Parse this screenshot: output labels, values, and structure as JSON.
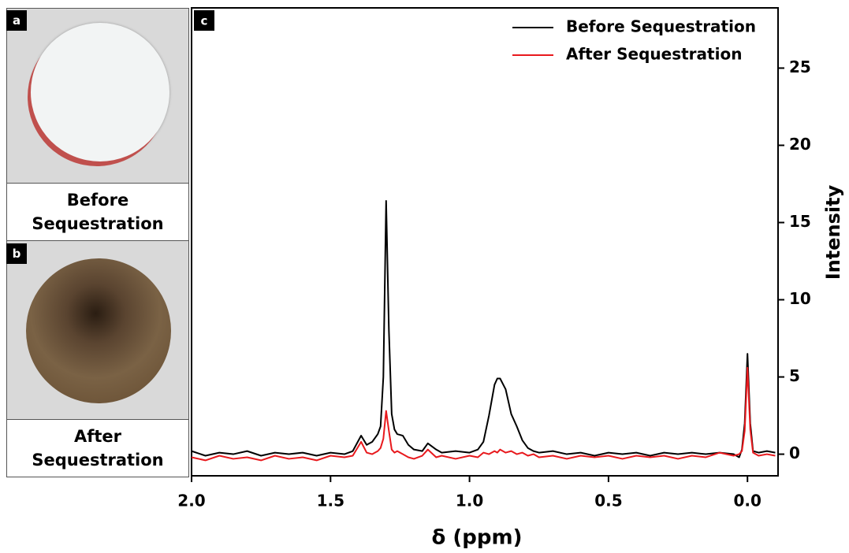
{
  "panels": [
    {
      "label": "a",
      "caption": "Before Sequestration"
    },
    {
      "label": "b",
      "caption": "After Sequestration"
    }
  ],
  "chart_data": {
    "type": "line",
    "panel_label": "c",
    "xlabel": "δ (ppm)",
    "ylabel": "Intensity",
    "x": [
      2.0,
      1.95,
      1.9,
      1.85,
      1.8,
      1.75,
      1.7,
      1.65,
      1.6,
      1.55,
      1.5,
      1.45,
      1.42,
      1.39,
      1.37,
      1.35,
      1.33,
      1.32,
      1.31,
      1.3,
      1.29,
      1.28,
      1.27,
      1.26,
      1.24,
      1.22,
      1.2,
      1.17,
      1.15,
      1.12,
      1.1,
      1.05,
      1.0,
      0.97,
      0.95,
      0.93,
      0.91,
      0.9,
      0.89,
      0.87,
      0.85,
      0.83,
      0.81,
      0.79,
      0.77,
      0.75,
      0.7,
      0.65,
      0.6,
      0.55,
      0.5,
      0.45,
      0.4,
      0.35,
      0.3,
      0.25,
      0.2,
      0.15,
      0.1,
      0.05,
      0.03,
      0.02,
      0.01,
      0.0,
      -0.01,
      -0.02,
      -0.04,
      -0.07,
      -0.1
    ],
    "series": [
      {
        "name": "Before Sequestration",
        "color": "#000000",
        "values": [
          0.2,
          -0.1,
          0.1,
          0.0,
          0.2,
          -0.1,
          0.1,
          0.0,
          0.1,
          -0.1,
          0.1,
          0.0,
          0.2,
          1.2,
          0.6,
          0.8,
          1.3,
          1.8,
          5.0,
          16.4,
          8.0,
          2.6,
          1.6,
          1.3,
          1.2,
          0.6,
          0.3,
          0.2,
          0.7,
          0.3,
          0.1,
          0.2,
          0.1,
          0.3,
          0.8,
          2.5,
          4.5,
          4.9,
          4.9,
          4.2,
          2.6,
          1.8,
          0.9,
          0.4,
          0.2,
          0.1,
          0.2,
          0.0,
          0.1,
          -0.1,
          0.1,
          0.0,
          0.1,
          -0.1,
          0.1,
          0.0,
          0.1,
          0.0,
          0.1,
          0.0,
          -0.2,
          0.3,
          2.0,
          6.5,
          2.0,
          0.2,
          0.1,
          0.2,
          0.1
        ]
      },
      {
        "name": "After Sequestration",
        "color": "#e8191d",
        "values": [
          -0.2,
          -0.4,
          -0.1,
          -0.3,
          -0.2,
          -0.4,
          -0.1,
          -0.3,
          -0.2,
          -0.4,
          -0.1,
          -0.2,
          -0.1,
          0.8,
          0.1,
          0.0,
          0.2,
          0.4,
          1.0,
          2.8,
          1.5,
          0.3,
          0.1,
          0.2,
          0.0,
          -0.2,
          -0.3,
          -0.1,
          0.3,
          -0.2,
          -0.1,
          -0.3,
          -0.1,
          -0.2,
          0.1,
          0.0,
          0.2,
          0.1,
          0.3,
          0.1,
          0.2,
          0.0,
          0.1,
          -0.1,
          0.0,
          -0.2,
          -0.1,
          -0.3,
          -0.1,
          -0.2,
          -0.1,
          -0.3,
          -0.1,
          -0.2,
          -0.1,
          -0.3,
          -0.1,
          -0.2,
          0.1,
          -0.1,
          0.0,
          0.2,
          1.5,
          5.6,
          1.6,
          0.1,
          -0.1,
          0.0,
          -0.1
        ]
      }
    ],
    "xlim": [
      2.0,
      -0.11
    ],
    "xticks": [
      {
        "value": 2.0,
        "label": "2.0"
      },
      1.5,
      {
        "value": 1.0,
        "label": "1.0"
      },
      0.5,
      {
        "value": 0.0,
        "label": "0.0"
      }
    ],
    "ylim": [
      -1.4,
      28.9
    ],
    "yticks": [
      0,
      5,
      10,
      15,
      20,
      25
    ],
    "y_axis_side": "right",
    "legend": "upper right"
  }
}
